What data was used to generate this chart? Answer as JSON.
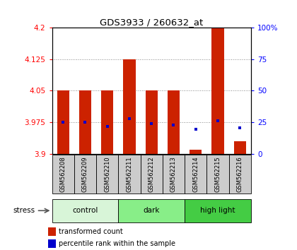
{
  "title": "GDS3933 / 260632_at",
  "samples": [
    "GSM562208",
    "GSM562209",
    "GSM562210",
    "GSM562211",
    "GSM562212",
    "GSM562213",
    "GSM562214",
    "GSM562215",
    "GSM562216"
  ],
  "groups": [
    {
      "name": "control",
      "color": "#d8f5d8",
      "range": [
        0,
        2
      ]
    },
    {
      "name": "dark",
      "color": "#88ee88",
      "range": [
        3,
        5
      ]
    },
    {
      "name": "high light",
      "color": "#44cc44",
      "range": [
        6,
        8
      ]
    }
  ],
  "red_values": [
    4.05,
    4.05,
    4.05,
    4.125,
    4.05,
    4.05,
    3.91,
    4.2,
    3.93
  ],
  "blue_values": [
    3.975,
    3.975,
    3.965,
    3.983,
    3.972,
    3.968,
    3.958,
    3.978,
    3.962
  ],
  "ylim_left": [
    3.9,
    4.2
  ],
  "ylim_right": [
    0,
    100
  ],
  "yticks_left": [
    3.9,
    3.975,
    4.05,
    4.125,
    4.2
  ],
  "yticks_right": [
    0,
    25,
    50,
    75,
    100
  ],
  "bar_width": 0.55,
  "bar_color": "#cc2200",
  "dot_color": "#0000cc",
  "baseline": 3.9,
  "grid_color": "#888888",
  "legend_red": "transformed count",
  "legend_blue": "percentile rank within the sample",
  "stress_label": "stress"
}
